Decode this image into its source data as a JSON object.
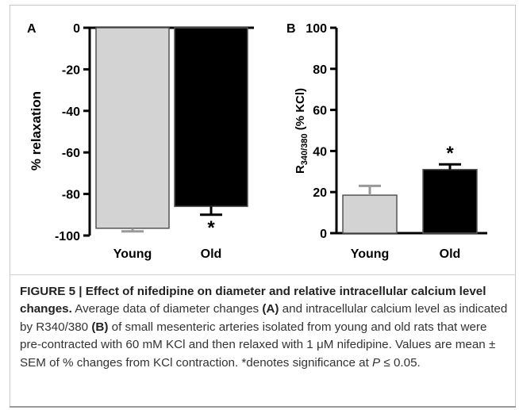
{
  "chart_data": [
    {
      "type": "bar",
      "panel_label": "A",
      "ylabel": "% relaxation",
      "categories": [
        "Young",
        "Old"
      ],
      "values": [
        -96.5,
        -86.0
      ],
      "errors": [
        1.5,
        4.0
      ],
      "significance": [
        "",
        "*"
      ],
      "ylim": [
        -100,
        0
      ],
      "yticks": [
        -100,
        -80,
        -60,
        -40,
        -20,
        0
      ],
      "colors": [
        "#d3d3d3",
        "#000000"
      ],
      "grid": false,
      "legend": "none"
    },
    {
      "type": "bar",
      "panel_label": "B",
      "ylabel_main": "R",
      "ylabel_sub": "340/380",
      "ylabel_rest": " (% KCl)",
      "categories": [
        "Young",
        "Old"
      ],
      "values": [
        18.5,
        31.0
      ],
      "errors": [
        4.5,
        2.5
      ],
      "significance": [
        "",
        "*"
      ],
      "ylim": [
        0,
        100
      ],
      "yticks": [
        0,
        20,
        40,
        60,
        80,
        100
      ],
      "colors": [
        "#d3d3d3",
        "#000000"
      ],
      "grid": false,
      "legend": "none"
    }
  ],
  "caption": {
    "title": "FIGURE 5 | Effect of nifedipine on diameter and relative intracellular calcium level changes.",
    "part1": " Average data of diameter changes ",
    "ref_a": "(A)",
    "part2": " and intracellular calcium level as indicated by R340/380 ",
    "ref_b": "(B)",
    "part3": " of small mesenteric arteries isolated from young and old rats that were pre-contracted with 60 mM KCl and then relaxed with 1 μM nifedipine. Values are mean ± SEM of % changes from KCl contraction. *denotes significance at ",
    "p_symbol": "P",
    "part4": " ≤ 0.05."
  }
}
